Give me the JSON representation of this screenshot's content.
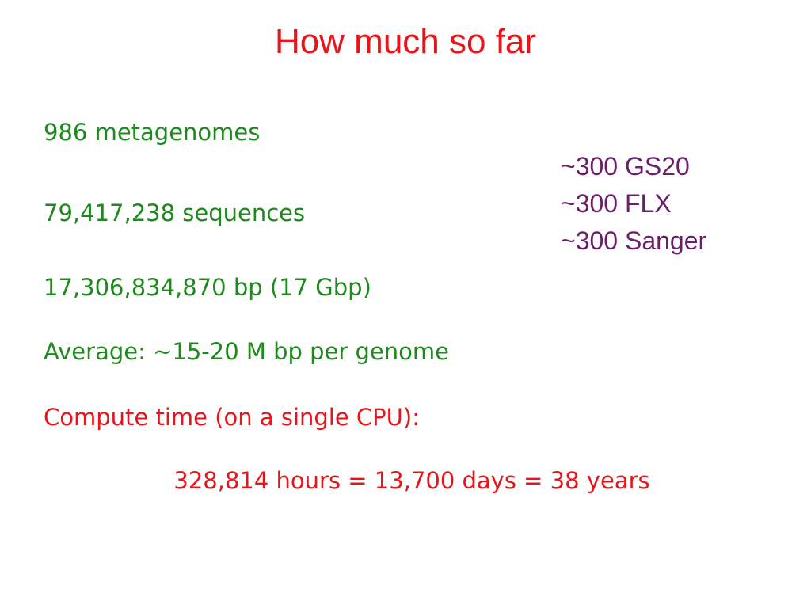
{
  "title": "How much so far",
  "lines": [
    "986 metagenomes",
    "79,417,238 sequences",
    "17,306,834,870 bp (17 Gbp)",
    "Average: ~15-20 M bp per genome",
    "Compute time (on a single CPU):"
  ],
  "result": "328,814 hours = 13,700 days = 38 years",
  "platforms": [
    "~300 GS20",
    "~300 FLX",
    "~300 Sanger"
  ]
}
